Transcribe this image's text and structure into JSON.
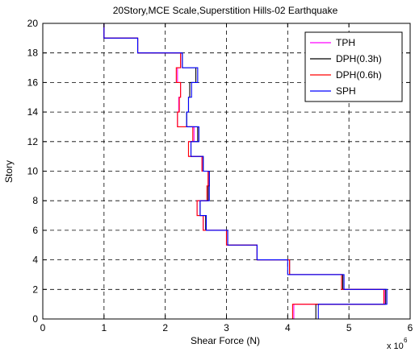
{
  "chart_data": {
    "type": "line",
    "title": "20Story,MCE Scale,Superstition Hills-02 Earthquake",
    "xlabel": "Shear Force (N)",
    "ylabel": "Story",
    "x_multiplier_label": "x 10",
    "x_multiplier_exponent": "6",
    "xlim": [
      0,
      6
    ],
    "ylim": [
      0,
      20
    ],
    "xticks": [
      "0",
      "1",
      "2",
      "3",
      "4",
      "5",
      "6"
    ],
    "yticks": [
      "0",
      "2",
      "4",
      "6",
      "8",
      "10",
      "12",
      "14",
      "16",
      "18",
      "20"
    ],
    "grid": true,
    "legend_position": "top-right",
    "stories": [
      0,
      1,
      2,
      3,
      4,
      5,
      6,
      7,
      8,
      9,
      10,
      11,
      12,
      13,
      14,
      15,
      16,
      17,
      18,
      19,
      20
    ],
    "series": [
      {
        "name": "TPH",
        "color": "#ff00ff",
        "values": [
          4.1,
          5.58,
          4.88,
          4.03,
          3.5,
          3.0,
          2.62,
          2.52,
          2.7,
          2.7,
          2.6,
          2.38,
          2.47,
          2.2,
          2.22,
          2.25,
          2.2,
          2.25,
          1.55,
          1.0
        ]
      },
      {
        "name": "DPH(0.3h)",
        "color": "#000000",
        "values": [
          4.46,
          5.6,
          4.9,
          4.03,
          3.5,
          3.02,
          2.66,
          2.57,
          2.7,
          2.72,
          2.62,
          2.42,
          2.53,
          2.35,
          2.38,
          2.4,
          2.5,
          2.28,
          1.55,
          1.0
        ]
      },
      {
        "name": "DPH(0.6h)",
        "color": "#ff0000",
        "values": [
          4.08,
          5.57,
          4.88,
          4.03,
          3.5,
          3.0,
          2.62,
          2.52,
          2.68,
          2.7,
          2.6,
          2.38,
          2.45,
          2.2,
          2.23,
          2.25,
          2.18,
          2.25,
          1.55,
          1.0
        ]
      },
      {
        "name": "SPH",
        "color": "#0000ff",
        "values": [
          4.5,
          5.62,
          4.92,
          4.0,
          3.5,
          3.02,
          2.67,
          2.57,
          2.72,
          2.72,
          2.62,
          2.42,
          2.55,
          2.35,
          2.38,
          2.43,
          2.53,
          2.28,
          1.55,
          1.0
        ]
      }
    ]
  }
}
